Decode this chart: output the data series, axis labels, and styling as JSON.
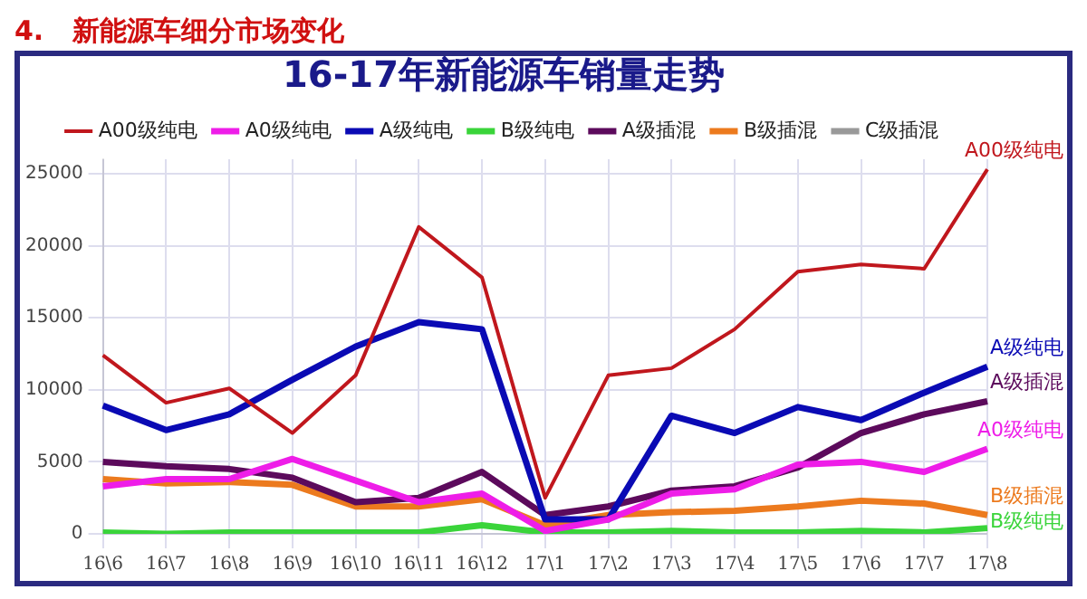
{
  "chart_data": {
    "type": "line",
    "title": "4.   新能源车细分市场变化",
    "subtitle": "16-17年新能源车销量走势",
    "categories": [
      "16\\6",
      "16\\7",
      "16\\8",
      "16\\9",
      "16\\10",
      "16\\11",
      "16\\12",
      "17\\1",
      "17\\2",
      "17\\3",
      "17\\4",
      "17\\5",
      "17\\6",
      "17\\7",
      "17\\8"
    ],
    "series": [
      {
        "name": "A00级纯电",
        "color": "#c0171d",
        "values": [
          12400,
          9100,
          10100,
          7000,
          11000,
          21300,
          17800,
          2500,
          11000,
          11500,
          14200,
          18200,
          18700,
          18400,
          25300
        ]
      },
      {
        "name": "A0级纯电",
        "color": "#ee1de8",
        "values": [
          3300,
          3800,
          3800,
          5200,
          3700,
          2200,
          2800,
          200,
          1000,
          2800,
          3100,
          4800,
          5000,
          4300,
          5900
        ]
      },
      {
        "name": "A级纯电",
        "color": "#0a0ab4",
        "values": [
          8900,
          7200,
          8300,
          10700,
          13000,
          14700,
          14200,
          1000,
          1000,
          8200,
          7000,
          8800,
          7900,
          9800,
          11600
        ]
      },
      {
        "name": "B级纯电",
        "color": "#3ad43a",
        "values": [
          100,
          0,
          100,
          100,
          100,
          100,
          600,
          100,
          100,
          200,
          100,
          100,
          200,
          100,
          400
        ]
      },
      {
        "name": "A级插混",
        "color": "#5c0a5c",
        "values": [
          5000,
          4700,
          4500,
          3900,
          2200,
          2500,
          4300,
          1300,
          1900,
          3000,
          3300,
          4600,
          7000,
          8300,
          9200
        ]
      },
      {
        "name": "B级插混",
        "color": "#ec7a1e",
        "values": [
          3800,
          3500,
          3600,
          3400,
          1900,
          1900,
          2400,
          600,
          1300,
          1500,
          1600,
          1900,
          2300,
          2100,
          1300
        ]
      },
      {
        "name": "C级插混",
        "color": "#999999",
        "values": [
          null,
          null,
          null,
          null,
          null,
          null,
          null,
          null,
          null,
          null,
          null,
          null,
          null,
          null,
          null
        ]
      }
    ],
    "annotations": [
      {
        "text": "A00级纯电",
        "x": "17\\8",
        "y": 25300
      },
      {
        "text": "A级纯电",
        "x": "17\\8",
        "y": 11600
      },
      {
        "text": "A级插混",
        "x": "17\\8",
        "y": 9200
      },
      {
        "text": "A0级纯电",
        "x": "17\\8",
        "y": 5900
      },
      {
        "text": "B级插混",
        "x": "17\\8",
        "y": 1300
      },
      {
        "text": "B级纯电",
        "x": "17\\8",
        "y": 400
      }
    ],
    "ylim": [
      0,
      26000
    ],
    "yticks": [
      0,
      5000,
      10000,
      15000,
      20000,
      25000
    ],
    "grid": true,
    "legend": "top",
    "marker": "none",
    "line_style": "solid"
  }
}
